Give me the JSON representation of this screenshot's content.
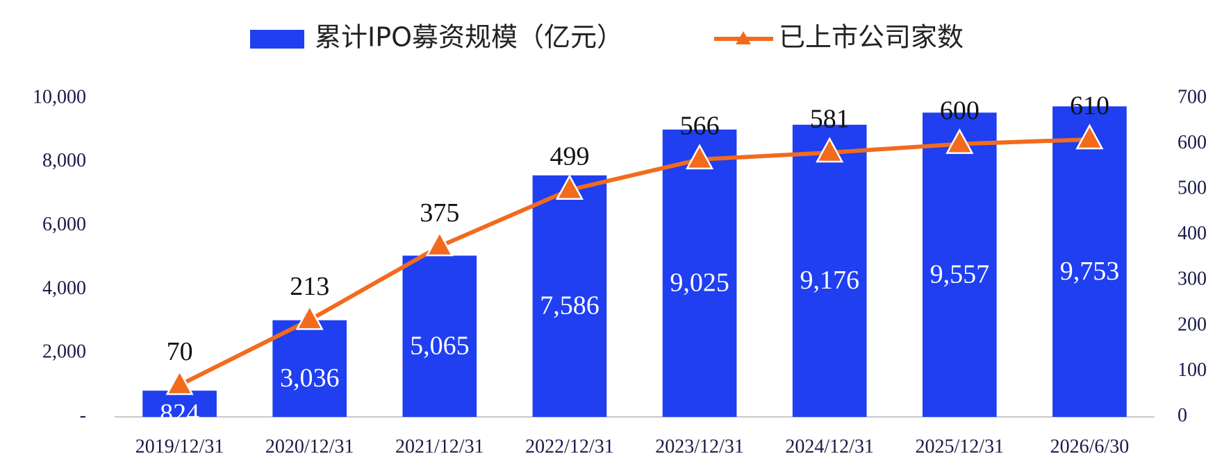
{
  "chart_data": {
    "type": "bar",
    "categories": [
      "2019/12/31",
      "2020/12/31",
      "2021/12/31",
      "2022/12/31",
      "2023/12/31",
      "2024/12/31",
      "2025/12/31",
      "2026/6/30"
    ],
    "series": [
      {
        "name": "累计IPO募资规模（亿元）",
        "type": "bar",
        "color": "#1f3ff0",
        "values": [
          824,
          3036,
          5065,
          7586,
          9025,
          9176,
          9557,
          9753
        ],
        "value_labels": [
          "824",
          "3,036",
          "5,065",
          "7,586",
          "9,025",
          "9,176",
          "9,557",
          "9,753"
        ]
      },
      {
        "name": "已上市公司家数",
        "type": "line",
        "axis": "y2",
        "color": "#f26b1d",
        "values": [
          70,
          213,
          375,
          499,
          566,
          581,
          600,
          610
        ]
      }
    ],
    "ylim": [
      0,
      10000
    ],
    "yticks": [
      {
        "value": 0,
        "label": "-"
      },
      {
        "value": 2000,
        "label": "2,000"
      },
      {
        "value": 4000,
        "label": "4,000"
      },
      {
        "value": 6000,
        "label": "6,000"
      },
      {
        "value": 8000,
        "label": "8,000"
      },
      {
        "value": 10000,
        "label": "10,000"
      }
    ],
    "y2lim": [
      0,
      700
    ],
    "y2ticks": [
      0,
      100,
      200,
      300,
      400,
      500,
      600,
      700
    ],
    "grid": false,
    "legend": "top"
  }
}
